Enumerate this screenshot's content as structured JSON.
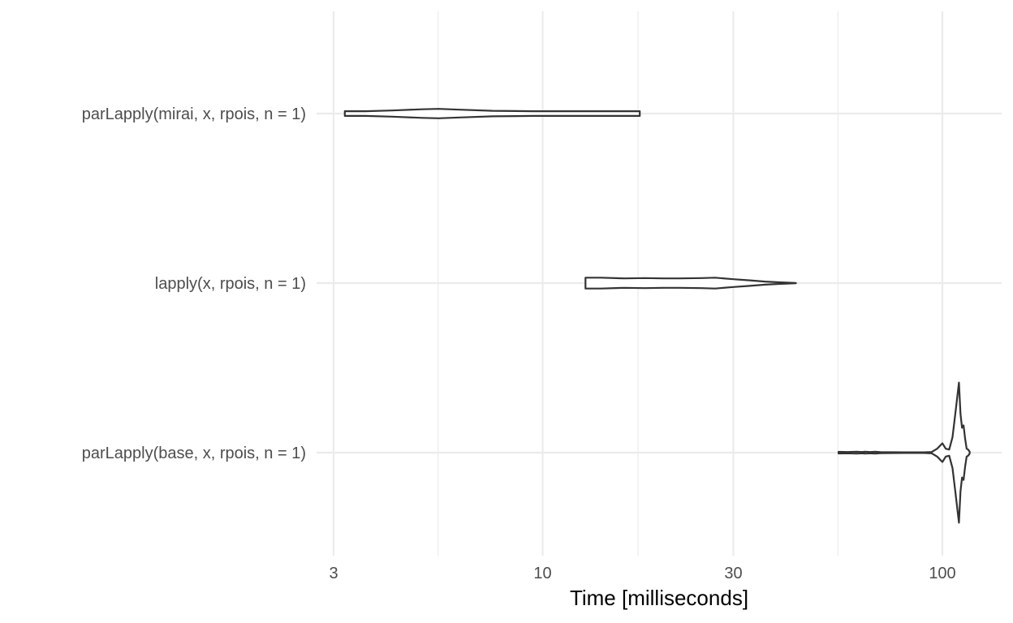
{
  "chart_data": {
    "type": "violin",
    "xlabel": "Time [milliseconds]",
    "ylabel": "",
    "x_scale": "log10",
    "xlim": [
      2.6,
      130
    ],
    "x_ticks": [
      3,
      10,
      30,
      100
    ],
    "x_tick_labels": [
      "3",
      "10",
      "30",
      "100"
    ],
    "grid": true,
    "colors": {
      "grid": "#ebebeb",
      "outline": "#333333",
      "tick_label": "#4d4d4d",
      "title": "#000000",
      "background": "#ffffff"
    },
    "categories": [
      "parLapply(base, x, rpois, n = 1)",
      "lapply(x, rpois, n = 1)",
      "parLapply(mirai, x, rpois, n = 1)"
    ],
    "violins": [
      {
        "category": "parLapply(base, x, rpois, n = 1)",
        "min": 55,
        "max": 117,
        "profile": [
          [
            55,
            0.01
          ],
          [
            58,
            0.008
          ],
          [
            61,
            0.012
          ],
          [
            63,
            0.008
          ],
          [
            64,
            0.012
          ],
          [
            66,
            0.008
          ],
          [
            68,
            0.012
          ],
          [
            70,
            0.006
          ],
          [
            80,
            0.004
          ],
          [
            90,
            0.004
          ],
          [
            94,
            0.008
          ],
          [
            97,
            0.05
          ],
          [
            100,
            0.12
          ],
          [
            102,
            0.05
          ],
          [
            104,
            0.04
          ],
          [
            106,
            0.2
          ],
          [
            108,
            0.55
          ],
          [
            110,
            0.9
          ],
          [
            111,
            0.5
          ],
          [
            112,
            0.32
          ],
          [
            113,
            0.35
          ],
          [
            114,
            0.18
          ],
          [
            115,
            0.05
          ],
          [
            116,
            0.04
          ],
          [
            117,
            0.012
          ]
        ]
      },
      {
        "category": "lapply(x, rpois, n = 1)",
        "min": 12.8,
        "max": 43,
        "profile": [
          [
            12.8,
            0.07
          ],
          [
            14,
            0.07
          ],
          [
            16,
            0.06
          ],
          [
            18,
            0.065
          ],
          [
            20,
            0.06
          ],
          [
            22,
            0.06
          ],
          [
            25,
            0.065
          ],
          [
            27,
            0.07
          ],
          [
            30,
            0.05
          ],
          [
            33,
            0.035
          ],
          [
            36,
            0.02
          ],
          [
            39,
            0.01
          ],
          [
            43,
            0.002
          ]
        ]
      },
      {
        "category": "parLapply(mirai, x, rpois, n = 1)",
        "min": 3.2,
        "max": 17.5,
        "profile": [
          [
            3.2,
            0.03
          ],
          [
            3.6,
            0.03
          ],
          [
            4.2,
            0.04
          ],
          [
            5.0,
            0.055
          ],
          [
            5.5,
            0.06
          ],
          [
            6.2,
            0.05
          ],
          [
            7.5,
            0.035
          ],
          [
            9.5,
            0.03
          ],
          [
            12,
            0.03
          ],
          [
            14,
            0.03
          ],
          [
            16,
            0.03
          ],
          [
            17.5,
            0.03
          ]
        ]
      }
    ]
  }
}
